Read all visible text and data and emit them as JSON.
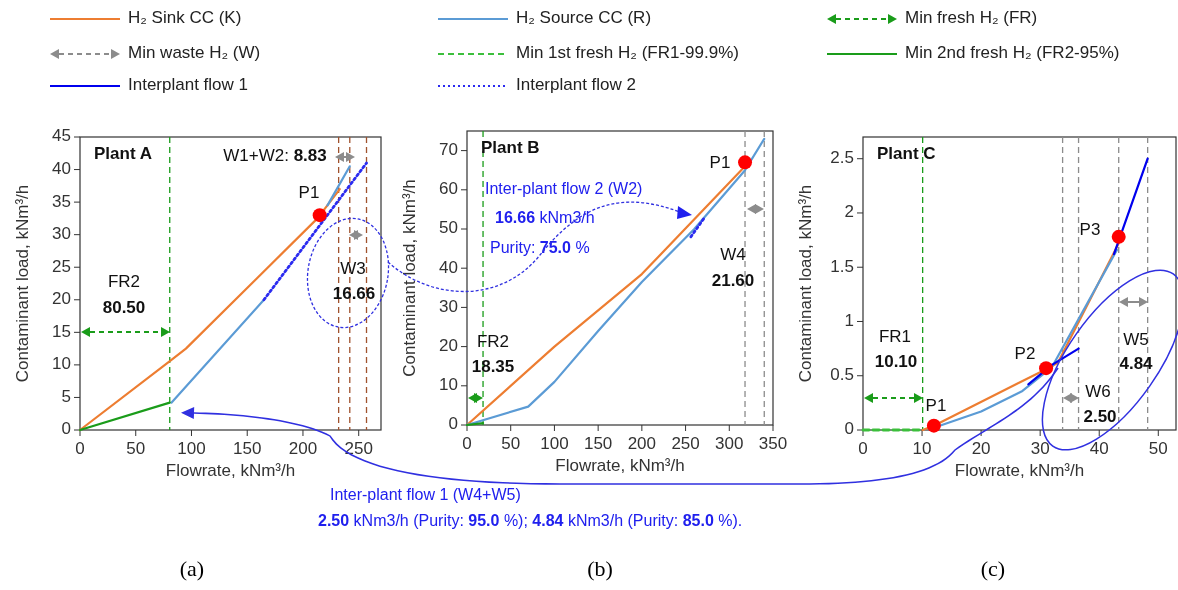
{
  "chart_data": [
    {
      "type": "line",
      "title": "Plant A",
      "subtitle": "(a)",
      "xlabel": "Flowrate, kNm³/h",
      "ylabel": "Contaminant load, kNm³/h",
      "xlim": [
        0,
        270
      ],
      "xticks": [
        0,
        50,
        100,
        150,
        200,
        250
      ],
      "ylim": [
        0,
        45
      ],
      "yticks": [
        0,
        5,
        10,
        15,
        20,
        25,
        30,
        35,
        40,
        45
      ],
      "legend": "top",
      "series": [
        {
          "name": "H₂ Sink CC (K)",
          "color": "#ed7d31",
          "x": [
            0,
            80,
            95,
            213,
            233
          ],
          "values": [
            0,
            10.5,
            12.5,
            32.5,
            37
          ]
        },
        {
          "name": "H₂ Source CC (R)",
          "color": "#5b9bd5",
          "x": [
            82,
            165,
            190,
            222,
            242
          ],
          "values": [
            4.2,
            20,
            null,
            34.5,
            40.5
          ]
        },
        {
          "name": "Min 2nd fresh H₂ (FR2-95%)",
          "color": "#1a9c1a",
          "x": [
            0,
            80.5
          ],
          "values": [
            0,
            4.2
          ]
        },
        {
          "name": "Interplant flow 2",
          "color": "#2b2bf0",
          "line_style": "dotted",
          "x": [
            165,
            257
          ],
          "values": [
            20,
            41
          ]
        },
        {
          "type": "scatter",
          "color": "#ff0000",
          "marker": "circle",
          "x": [
            215
          ],
          "values": [
            33
          ]
        }
      ],
      "ref_lines": [
        {
          "axis": "x",
          "value": 80.5,
          "color": "#1a9c1a",
          "line_style": "dashed"
        },
        {
          "axis": "x",
          "value": 232,
          "color": "#a0522d",
          "line_style": "dashed"
        },
        {
          "axis": "x",
          "value": 242,
          "color": "#a0522d",
          "line_style": "dashed"
        },
        {
          "axis": "x",
          "value": 257,
          "color": "#a0522d",
          "line_style": "dashed"
        }
      ],
      "annotations": [
        "Min fresh H₂ (FR)",
        "Min waste H₂ (W)",
        "P1",
        "W1+W2: 8.83",
        "W3",
        "16.66",
        "FR2",
        "80.50"
      ]
    },
    {
      "type": "line",
      "title": "Plant B",
      "subtitle": "(b)",
      "xlabel": "Flowrate, kNm³/h",
      "ylabel": "Contaminant load, kNm³/h",
      "xlim": [
        0,
        350
      ],
      "xticks": [
        0,
        50,
        100,
        150,
        200,
        250,
        300,
        350
      ],
      "ylim": [
        0,
        75
      ],
      "yticks": [
        0,
        10,
        20,
        30,
        40,
        50,
        60,
        70
      ],
      "series": [
        {
          "color": "#ed7d31",
          "x": [
            0,
            100,
            200,
            318
          ],
          "values": [
            0,
            20,
            38.5,
            66
          ]
        },
        {
          "color": "#5b9bd5",
          "x": [
            0,
            70,
            100,
            150,
            200,
            260,
            318,
            340
          ],
          "values": [
            0,
            4.7,
            11,
            24,
            36.5,
            50,
            65,
            73
          ]
        },
        {
          "color": "#1a9c1a",
          "x": [
            0,
            18.35
          ],
          "values": [
            0,
            0.5
          ]
        },
        {
          "color": "#2b2bf0",
          "line_style": "dotted",
          "x": [
            256,
            272
          ],
          "values": [
            48,
            53
          ]
        },
        {
          "type": "scatter",
          "color": "#ff0000",
          "marker": "circle",
          "x": [
            318
          ],
          "values": [
            67
          ]
        }
      ],
      "ref_lines": [
        {
          "axis": "x",
          "value": 18.35,
          "color": "#1a9c1a",
          "line_style": "dashed"
        },
        {
          "axis": "x",
          "value": 318,
          "color": "#8c8c8c",
          "line_style": "dashed"
        },
        {
          "axis": "x",
          "value": 340,
          "color": "#8c8c8c",
          "line_style": "dashed"
        }
      ],
      "annotations": [
        "P1",
        "W4",
        "21.60",
        "FR2",
        "18.35",
        "Inter-plant flow 2 (W2)",
        "16.66 kNm3/h",
        "Purity: 75.0 %",
        "Inter-plant flow 1 (W4+W5)",
        "2.50 kNm3/h (Purity: 95.0 %); 4.84 kNm3/h (Purity: 85.0 %)."
      ]
    },
    {
      "type": "line",
      "title": "Plant C",
      "subtitle": "(c)",
      "xlabel": "Flowrate, kNm³/h",
      "ylabel": "Contaminant load, kNm³/h",
      "xlim": [
        0,
        53
      ],
      "xticks": [
        0,
        10,
        20,
        30,
        40,
        50
      ],
      "ylim": [
        0,
        2.7
      ],
      "yticks": [
        0,
        0.5,
        1,
        1.5,
        2,
        2.5
      ],
      "legend": "top",
      "series": [
        {
          "color": "#ed7d31",
          "x": [
            10.1,
            12,
            31,
            33,
            43.3
          ],
          "values": [
            0,
            0.04,
            0.56,
            0.62,
            1.72
          ]
        },
        {
          "color": "#5b9bd5",
          "x": [
            12,
            20,
            27,
            32,
            43
          ],
          "values": [
            0.02,
            0.17,
            0.36,
            0.58,
            1.66
          ]
        },
        {
          "name": "Min 1st fresh H₂ (FR1-99.9%)",
          "color": "#3cbf3c",
          "line_style": "dashed",
          "x": [
            0,
            10.1
          ],
          "values": [
            0,
            0
          ]
        },
        {
          "name": "Interplant flow 1",
          "color": "#0000ee",
          "x": [
            28,
            32,
            36.5,
            40,
            42.5,
            48.2
          ],
          "values": [
            0.42,
            0.6,
            0.75,
            null,
            1.62,
            2.5
          ]
        },
        {
          "type": "scatter",
          "color": "#ff0000",
          "marker": "circle",
          "x": [
            12,
            31,
            43.3
          ],
          "values": [
            0.04,
            0.57,
            1.78
          ]
        }
      ],
      "ref_lines": [
        {
          "axis": "x",
          "value": 10.1,
          "color": "#1a9c1a",
          "line_style": "dashed"
        },
        {
          "axis": "x",
          "value": 33.8,
          "color": "#8c8c8c",
          "line_style": "dashed"
        },
        {
          "axis": "x",
          "value": 36.5,
          "color": "#8c8c8c",
          "line_style": "dashed"
        },
        {
          "axis": "x",
          "value": 43.3,
          "color": "#8c8c8c",
          "line_style": "dashed"
        },
        {
          "axis": "x",
          "value": 48.2,
          "color": "#8c8c8c",
          "line_style": "dashed"
        }
      ],
      "annotations": [
        "P1",
        "P2",
        "P3",
        "FR1",
        "10.10",
        "W5",
        "4.84",
        "W6",
        "2.50"
      ]
    }
  ]
}
